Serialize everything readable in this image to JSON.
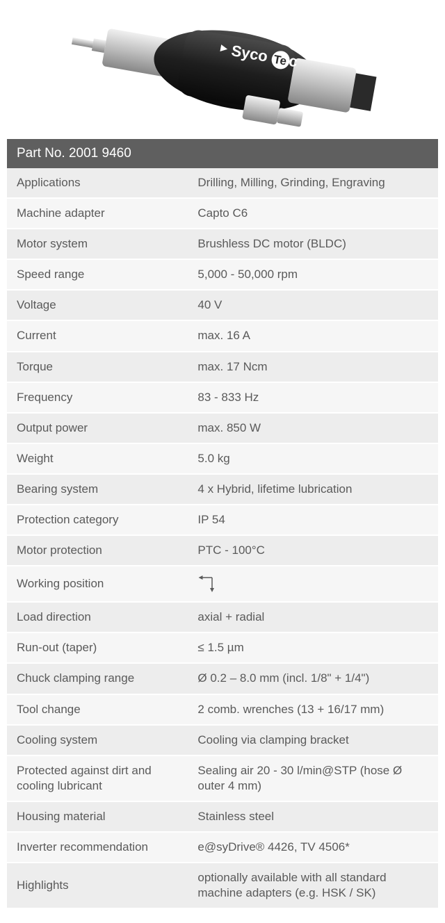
{
  "product_image": {
    "brand_text": "SycoTec",
    "body_color": "#2a2a2a",
    "metal_color": "#b8b8b8",
    "light_metal": "#d8d8d8"
  },
  "spec_table": {
    "header": "Part No. 2001 9460",
    "header_bg": "#5f5f5f",
    "header_text_color": "#ffffff",
    "row_bg_odd": "#ededed",
    "row_bg_even": "#f6f6f6",
    "text_color": "#5a5a5a",
    "rows": [
      {
        "label": "Applications",
        "value": "Drilling, Milling, Grinding, Engraving"
      },
      {
        "label": "Machine adapter",
        "value": "Capto C6"
      },
      {
        "label": "Motor system",
        "value": "Brushless DC motor (BLDC)"
      },
      {
        "label": "Speed range",
        "value": "5,000 - 50,000 rpm"
      },
      {
        "label": "Voltage",
        "value": "40 V"
      },
      {
        "label": "Current",
        "value": "max. 16 A"
      },
      {
        "label": "Torque",
        "value": "max. 17 Ncm"
      },
      {
        "label": "Frequency",
        "value": "83 - 833 Hz"
      },
      {
        "label": "Output power",
        "value": "max. 850 W"
      },
      {
        "label": "Weight",
        "value": "5.0 kg"
      },
      {
        "label": "Bearing system",
        "value": "4 x Hybrid, lifetime lubrication"
      },
      {
        "label": "Protection category",
        "value": "IP 54"
      },
      {
        "label": "Motor protection",
        "value": "PTC - 100°C"
      },
      {
        "label": "Working position",
        "value": "",
        "icon": "working-position"
      },
      {
        "label": "Load direction",
        "value": "axial + radial"
      },
      {
        "label": "Run-out (taper)",
        "value": "≤ 1.5 µm"
      },
      {
        "label": "Chuck clamping range",
        "value": "Ø 0.2 – 8.0 mm (incl. 1/8\" + 1/4\")"
      },
      {
        "label": "Tool change",
        "value": "2 comb. wrenches (13 + 16/17 mm)"
      },
      {
        "label": "Cooling system",
        "value": "Cooling via clamping bracket"
      },
      {
        "label": "Protected against dirt and cooling lubricant",
        "value": "Sealing air 20 - 30 l/min@STP (hose Ø outer 4 mm)"
      },
      {
        "label": "Housing material",
        "value": "Stainless steel"
      },
      {
        "label": "Inverter recommendation",
        "value": "e@syDrive® 4426, TV 4506*"
      },
      {
        "label": "Highlights",
        "value": "optionally available with all standard machine adapters (e.g. HSK / SK)"
      }
    ]
  }
}
